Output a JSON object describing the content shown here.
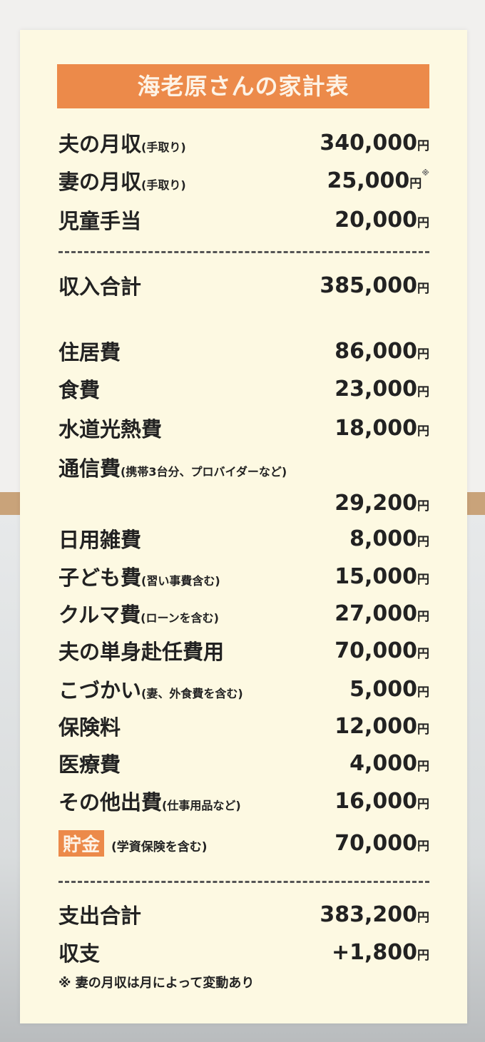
{
  "title": "海老原さんの家計表",
  "currency": "円",
  "income": [
    {
      "label": "夫の月収",
      "note": "(手取り)",
      "value": "340,000"
    },
    {
      "label": "妻の月収",
      "note": "(手取り)",
      "value": "25,000",
      "mark": "※"
    },
    {
      "label": "児童手当",
      "note": "",
      "value": "20,000"
    }
  ],
  "income_total": {
    "label": "収入合計",
    "value": "385,000"
  },
  "expenses": [
    {
      "label": "住居費",
      "note": "",
      "value": "86,000"
    },
    {
      "label": "食費",
      "note": "",
      "value": "23,000"
    },
    {
      "label": "水道光熱費",
      "note": "",
      "value": "18,000"
    },
    {
      "label": "通信費",
      "note": "(携帯3台分、プロバイダーなど)",
      "value": ""
    },
    {
      "label": "",
      "note": "",
      "value": "29,200"
    },
    {
      "label": "日用雑費",
      "note": "",
      "value": "8,000"
    },
    {
      "label": "子ども費",
      "note": "(習い事費含む)",
      "value": "15,000"
    },
    {
      "label": "クルマ費",
      "note": "(ローンを含む)",
      "value": "27,000"
    },
    {
      "label": "夫の単身赴任費用",
      "note": "",
      "value": "70,000"
    },
    {
      "label": "こづかい",
      "note": "(妻、外食費を含む)",
      "value": "5,000"
    },
    {
      "label": "保険料",
      "note": "",
      "value": "12,000"
    },
    {
      "label": "医療費",
      "note": "",
      "value": "4,000"
    },
    {
      "label": "その他出費",
      "note": "(仕事用品など)",
      "value": "16,000"
    }
  ],
  "savings": {
    "label": "貯金",
    "note": "(学資保険を含む)",
    "value": "70,000"
  },
  "expense_total": {
    "label": "支出合計",
    "value": "383,200"
  },
  "balance": {
    "label": "収支",
    "value": "+1,800"
  },
  "footnote": "※ 妻の月収は月によって変動あり",
  "colors": {
    "accent": "#ec8a4a",
    "card": "#fdf9e2",
    "text": "#222222"
  }
}
